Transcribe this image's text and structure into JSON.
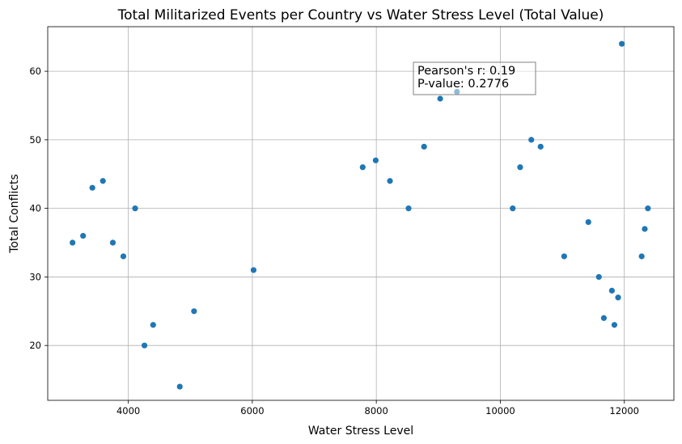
{
  "chart_data": {
    "type": "scatter",
    "title": "Total Militarized Events per Country vs Water Stress Level (Total Value)",
    "xlabel": "Water Stress Level",
    "ylabel": "Total Conflicts",
    "xlim": [
      2700,
      12800
    ],
    "ylim": [
      12,
      66.5
    ],
    "xticks": [
      4000,
      6000,
      8000,
      10000,
      12000
    ],
    "yticks": [
      20,
      30,
      40,
      50,
      60
    ],
    "grid": true,
    "point_color": "#1f77b4",
    "points": [
      {
        "x": 3100,
        "y": 35
      },
      {
        "x": 3270,
        "y": 36
      },
      {
        "x": 3420,
        "y": 43
      },
      {
        "x": 3590,
        "y": 44
      },
      {
        "x": 3750,
        "y": 35
      },
      {
        "x": 3920,
        "y": 33
      },
      {
        "x": 4110,
        "y": 40
      },
      {
        "x": 4260,
        "y": 20
      },
      {
        "x": 4400,
        "y": 23
      },
      {
        "x": 4830,
        "y": 14
      },
      {
        "x": 5060,
        "y": 25
      },
      {
        "x": 6020,
        "y": 31
      },
      {
        "x": 7780,
        "y": 46
      },
      {
        "x": 7990,
        "y": 47
      },
      {
        "x": 8220,
        "y": 44
      },
      {
        "x": 8520,
        "y": 40
      },
      {
        "x": 8770,
        "y": 49
      },
      {
        "x": 9030,
        "y": 56
      },
      {
        "x": 9300,
        "y": 57
      },
      {
        "x": 10200,
        "y": 40
      },
      {
        "x": 10320,
        "y": 46
      },
      {
        "x": 10500,
        "y": 50
      },
      {
        "x": 10650,
        "y": 49
      },
      {
        "x": 11030,
        "y": 33
      },
      {
        "x": 11420,
        "y": 38
      },
      {
        "x": 11590,
        "y": 30
      },
      {
        "x": 11670,
        "y": 24
      },
      {
        "x": 11800,
        "y": 28
      },
      {
        "x": 11840,
        "y": 23
      },
      {
        "x": 11900,
        "y": 27
      },
      {
        "x": 11960,
        "y": 64
      },
      {
        "x": 12280,
        "y": 33
      },
      {
        "x": 12330,
        "y": 37
      },
      {
        "x": 12380,
        "y": 40
      }
    ],
    "annotation": {
      "line1": "Pearson's r: 0.19",
      "line2": "P-value: 0.2776",
      "placement": "upper-center"
    }
  }
}
